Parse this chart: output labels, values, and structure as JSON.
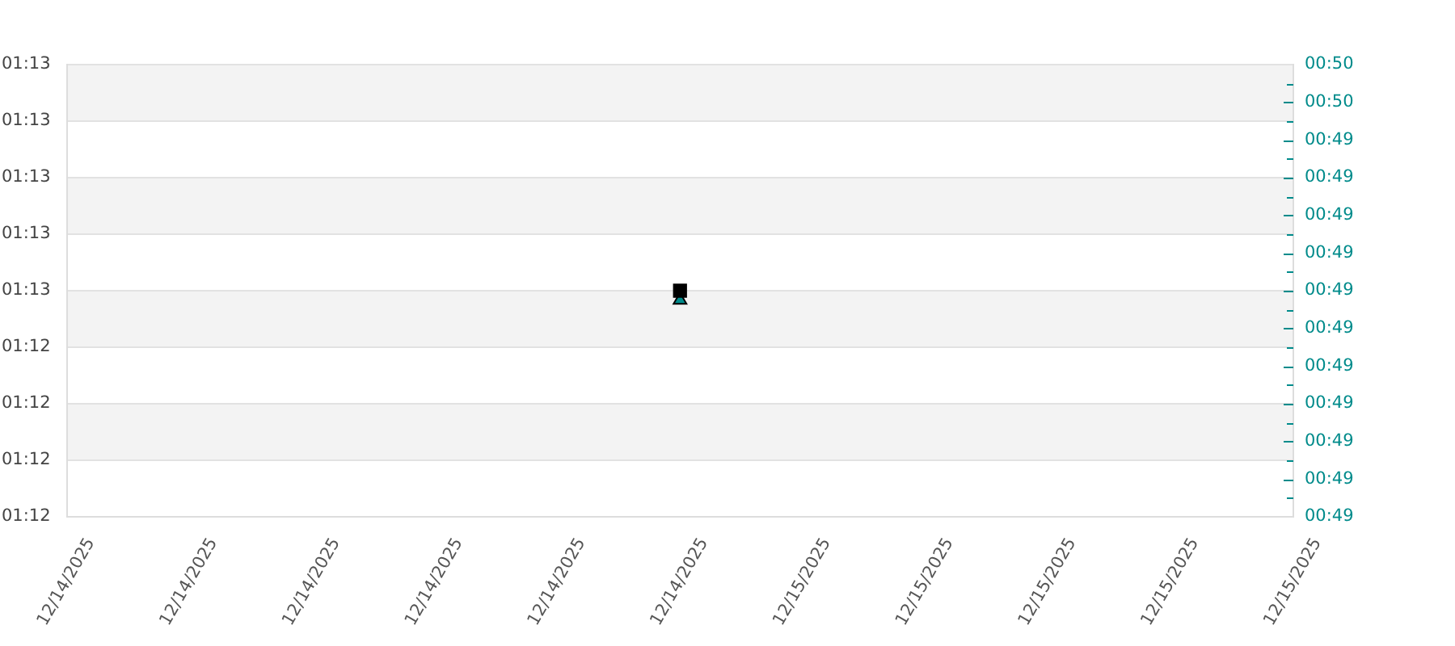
{
  "chart_data": {
    "type": "scatter",
    "x": [
      "2025-12-14T23:59"
    ],
    "series": [
      {
        "color": "#000000",
        "values": [
          72.6
        ],
        "marker": "square"
      },
      {
        "color": "#008b8b",
        "values": [
          49.12
        ],
        "marker": "triangle",
        "axis": "y2"
      }
    ],
    "xlim": [
      "2025-12-14T23:54",
      "2025-12-15T00:04"
    ],
    "xticks": [
      {
        "value": "2025-12-14T23:54",
        "label": "12/14/2025"
      },
      {
        "value": "2025-12-14T23:55",
        "label": "12/14/2025"
      },
      {
        "value": "2025-12-14T23:56",
        "label": "12/14/2025"
      },
      {
        "value": "2025-12-14T23:57",
        "label": "12/14/2025"
      },
      {
        "value": "2025-12-14T23:58",
        "label": "12/14/2025"
      },
      {
        "value": "2025-12-14T23:59",
        "label": "12/14/2025"
      },
      {
        "value": "2025-12-15T00:00",
        "label": "12/15/2025"
      },
      {
        "value": "2025-12-15T00:01",
        "label": "12/15/2025"
      },
      {
        "value": "2025-12-15T00:02",
        "label": "12/15/2025"
      },
      {
        "value": "2025-12-15T00:03",
        "label": "12/15/2025"
      },
      {
        "value": "2025-12-15T00:04",
        "label": "12/15/2025"
      }
    ],
    "ylim": [
      71.8,
      73.4
    ],
    "yticks": [
      {
        "value": 71.8,
        "label": "01:12"
      },
      {
        "value": 72.0,
        "label": "01:12"
      },
      {
        "value": 72.2,
        "label": "01:12"
      },
      {
        "value": 72.4,
        "label": "01:12"
      },
      {
        "value": 72.6,
        "label": "01:13"
      },
      {
        "value": 72.8,
        "label": "01:13"
      },
      {
        "value": 73.0,
        "label": "01:13"
      },
      {
        "value": 73.2,
        "label": "01:13"
      },
      {
        "value": 73.4,
        "label": "01:13"
      }
    ],
    "y2lim": [
      48.66,
      49.62
    ],
    "y2ticks": [
      {
        "value": 48.66,
        "label": "00:49"
      },
      {
        "value": 48.7,
        "label": null
      },
      {
        "value": 48.74,
        "label": "00:49"
      },
      {
        "value": 48.78,
        "label": null
      },
      {
        "value": 48.82,
        "label": "00:49"
      },
      {
        "value": 48.86,
        "label": null
      },
      {
        "value": 48.9,
        "label": "00:49"
      },
      {
        "value": 48.94,
        "label": null
      },
      {
        "value": 48.98,
        "label": "00:49"
      },
      {
        "value": 49.02,
        "label": null
      },
      {
        "value": 49.06,
        "label": "00:49"
      },
      {
        "value": 49.1,
        "label": null
      },
      {
        "value": 49.14,
        "label": "00:49"
      },
      {
        "value": 49.18,
        "label": null
      },
      {
        "value": 49.22,
        "label": "00:49"
      },
      {
        "value": 49.26,
        "label": null
      },
      {
        "value": 49.3,
        "label": "00:49"
      },
      {
        "value": 49.34,
        "label": null
      },
      {
        "value": 49.38,
        "label": "00:49"
      },
      {
        "value": 49.42,
        "label": null
      },
      {
        "value": 49.46,
        "label": "00:49"
      },
      {
        "value": 49.5,
        "label": null
      },
      {
        "value": 49.54,
        "label": "00:50"
      },
      {
        "value": 49.58,
        "label": null
      },
      {
        "value": 49.62,
        "label": "00:50"
      }
    ],
    "bands": [
      {
        "axis": "y",
        "from": 73.2,
        "to": 73.4,
        "color": "#f3f3f3"
      },
      {
        "axis": "y",
        "from": 72.8,
        "to": 73.0,
        "color": "#f3f3f3"
      },
      {
        "axis": "y",
        "from": 72.4,
        "to": 72.6,
        "color": "#f3f3f3"
      },
      {
        "axis": "y",
        "from": 72.0,
        "to": 72.2,
        "color": "#f3f3f3"
      }
    ],
    "grid": "y",
    "legend": false
  }
}
